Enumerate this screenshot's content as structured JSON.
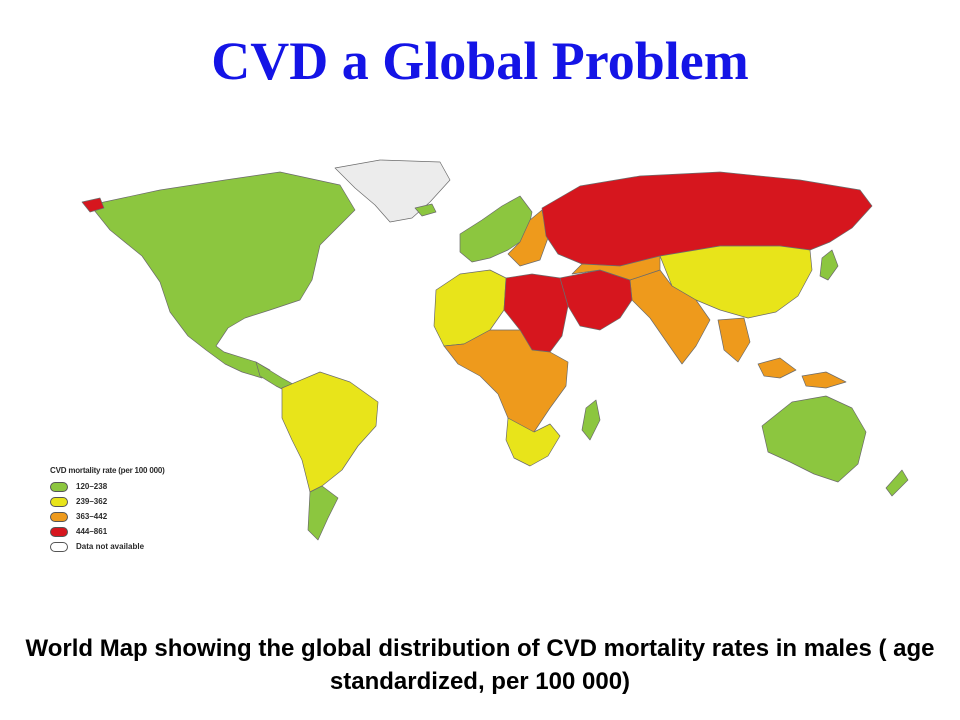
{
  "title": "CVD a Global Problem",
  "caption": "World Map showing the global distribution of CVD mortality rates in males ( age standardized, per 100 000)",
  "legend": {
    "title": "CVD mortality rate (per 100 000)",
    "items": [
      {
        "label": "120–238",
        "color": "#8cc63f"
      },
      {
        "label": "239–362",
        "color": "#e8e41a"
      },
      {
        "label": "363–442",
        "color": "#ee9a1c"
      },
      {
        "label": "444–861",
        "color": "#d6161e"
      },
      {
        "label": "Data not available",
        "color": "#ffffff"
      }
    ]
  },
  "colors": {
    "band1": "#8cc63f",
    "band2": "#e8e41a",
    "band3": "#ee9a1c",
    "band4": "#d6161e",
    "no_data": "#ececec"
  }
}
